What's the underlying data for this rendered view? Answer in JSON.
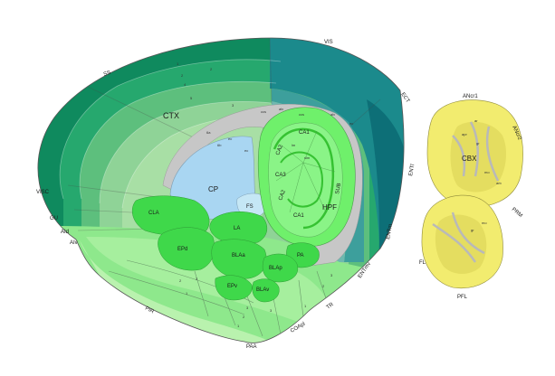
{
  "colors": {
    "cortex_outer": "#0f8a5e",
    "cortex_mid": "#26a86e",
    "cortex_inner": "#7ccf8f",
    "cortex_deep": "#a8dfa5",
    "teal_region": "#1b8a8c",
    "teal_dark": "#0d6f77",
    "ventral_region": "#8ee88c",
    "nucleus": "#3fd84a",
    "hippocampus": "#6ff06b",
    "ventricle": "#a9d6f2",
    "white_matter": "#c7c7c7",
    "cerebellum": "#f2ec6f",
    "cerebellum_core": "#d6cf57"
  },
  "labels": {
    "vis": "VIS",
    "ss": "SS",
    "ect": "ECT",
    "ctx": "CTX",
    "entl": "ENTl",
    "entm": "ENTm",
    "entmv": "ENTmv",
    "visc": "VISC",
    "gu": "GU",
    "aid": "AId",
    "aiv": "AIv",
    "cp": "CP",
    "fs": "FS",
    "cla": "CLA",
    "la": "LA",
    "epd": "EPd",
    "bla_a": "BLAa",
    "bla_p": "BLAp",
    "pa": "PA",
    "epv": "EPv",
    "bla_v": "BLAv",
    "pir": "PIR",
    "paa": "PAA",
    "coapl": "COApl",
    "tr": "TR",
    "hpf": "HPF",
    "ca1_top": "CA1",
    "ca2": "CA2",
    "ca3": "CA3",
    "ca2_lower": "CA2",
    "ca1_bottom": "CA1",
    "sub": "SUB",
    "ansr1": "ANcr1",
    "ansr2": "ANcr2",
    "cbx": "CBX",
    "prm": "PRM",
    "fl": "FL",
    "pfl": "PFL"
  },
  "small_labels": {
    "alv": "alv",
    "alv2": "alv",
    "ccs": "ccs",
    "ccs2": "ccs",
    "ec": "ec",
    "ec2": "ec",
    "ar": "ar",
    "gr": "gr",
    "gr2": "gr",
    "mo": "mo",
    "mo2": "mo",
    "arb": "arb",
    "apr": "apr",
    "slm": "slm",
    "lm": "lm",
    "ec3": "ec"
  },
  "layer_numbers": {
    "n1": "1",
    "n2": "2",
    "n2b": "2",
    "n3": "3",
    "n4": "4",
    "n5": "5",
    "n6a": "6a",
    "n6b": "6b",
    "p1": "1",
    "p2": "2",
    "p3": "3",
    "q1": "1",
    "q2": "2",
    "q3": "3",
    "q3b": "3",
    "r1": "1",
    "r2": "2",
    "r3": "3"
  },
  "icons": {
    "brain": "brain-section-icon",
    "cerebellum": "cerebellum-icon"
  }
}
